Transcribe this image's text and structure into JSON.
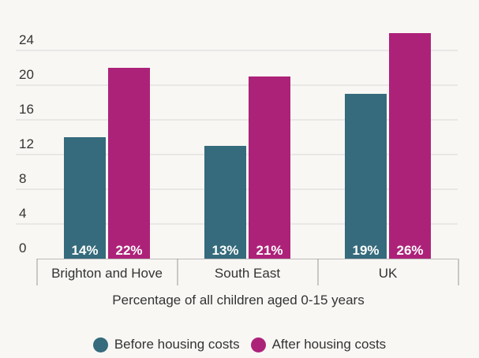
{
  "chart_data": {
    "type": "bar",
    "categories": [
      "Brighton and Hove",
      "South East",
      "UK"
    ],
    "series": [
      {
        "name": "Before housing costs",
        "values": [
          14,
          13,
          19
        ],
        "labels": [
          "14%",
          "13%",
          "19%"
        ],
        "color": "#356b7c"
      },
      {
        "name": "After housing costs",
        "values": [
          22,
          21,
          26
        ],
        "labels": [
          "22%",
          "21%",
          "26%"
        ],
        "color": "#ad2279"
      }
    ],
    "title": "",
    "xlabel": "Percentage of all children aged 0-15 years",
    "ylabel": "",
    "ylim": [
      0,
      26
    ],
    "yticks": [
      0,
      4,
      8,
      12,
      16,
      20,
      24
    ],
    "grid": true,
    "legend_position": "bottom"
  }
}
